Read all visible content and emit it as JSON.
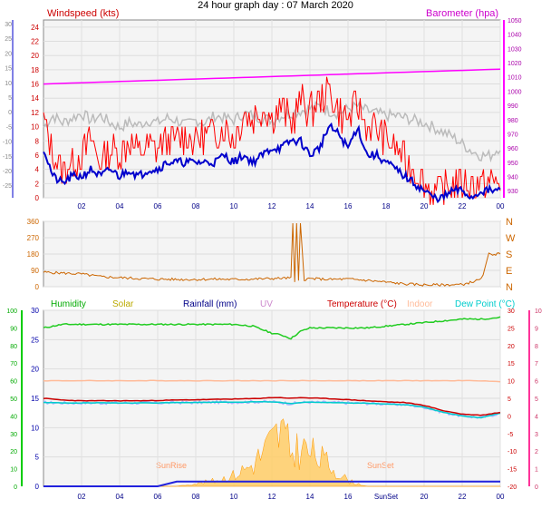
{
  "title": "24 hour graph day : 07 March 2020",
  "colors": {
    "wind_avg": "#0000cc",
    "wind_gust": "#ff0000",
    "baro": "#ff00ff",
    "temp_gray": "#bbbbbb",
    "direction": "#cc6600",
    "humidity": "#00bb00",
    "solar": "#cccc00",
    "rainfall": "#0000aa",
    "uv": "#cc88cc",
    "temperature": "#cc0000",
    "indoor": "#ffbb99",
    "dewpoint": "#00cccc"
  },
  "chart_data": [
    {
      "type": "line",
      "title": "Windspeed (kts)",
      "right_title": "Barometer (hpa)",
      "x_tick_labels": [
        "02",
        "04",
        "06",
        "08",
        "10",
        "12",
        "14",
        "16",
        "18",
        "20",
        "22",
        "00"
      ],
      "y_left_outer_ticks": [
        "30",
        "25",
        "20",
        "15",
        "10",
        "5",
        "0",
        "-5",
        "-10",
        "-15",
        "-20",
        "-25"
      ],
      "y_left_ticks": [
        "24",
        "22",
        "20",
        "18",
        "16",
        "14",
        "12",
        "10",
        "8",
        "6",
        "4",
        "2",
        "0"
      ],
      "y_right_ticks": [
        "1050",
        "1040",
        "1030",
        "1020",
        "1010",
        "1000",
        "990",
        "980",
        "970",
        "960",
        "950",
        "940",
        "930"
      ],
      "ylim": [
        0,
        25
      ],
      "x_hours": [
        0,
        0.5,
        1,
        1.5,
        2,
        2.5,
        3,
        3.5,
        4,
        4.5,
        5,
        5.5,
        6,
        6.5,
        7,
        7.5,
        8,
        8.5,
        9,
        9.5,
        10,
        10.5,
        11,
        11.5,
        12,
        12.5,
        13,
        13.5,
        14,
        14.5,
        15,
        15.5,
        16,
        16.5,
        17,
        17.5,
        18,
        18.5,
        19,
        19.5,
        20,
        20.5,
        21,
        21.5,
        22,
        22.5,
        23,
        23.5,
        24
      ],
      "series": [
        {
          "name": "Windspeed (kts)",
          "values": [
            7,
            3,
            2,
            3,
            3,
            4,
            3,
            4,
            3,
            4,
            3,
            4,
            4,
            5,
            5,
            5,
            5,
            5,
            5,
            6,
            5,
            6,
            5,
            6,
            7,
            7,
            8,
            8,
            6,
            7,
            10,
            9,
            7,
            10,
            6,
            6,
            5,
            4,
            3,
            2,
            1,
            0,
            0,
            1,
            1,
            0,
            1,
            1,
            1
          ]
        },
        {
          "name": "Gust",
          "values": [
            11,
            6,
            4,
            5,
            6,
            8,
            5,
            7,
            6,
            8,
            6,
            7,
            7,
            8,
            8,
            9,
            8,
            9,
            9,
            10,
            8,
            12,
            11,
            13,
            11,
            13,
            10,
            14,
            12,
            14,
            15,
            12,
            11,
            13,
            10,
            10,
            8,
            7,
            5,
            4,
            2,
            1,
            1,
            2,
            2,
            2,
            2,
            2,
            2
          ]
        },
        {
          "name": "Barometer (hpa)",
          "values": [
            1004,
            1004.5,
            1005,
            1005.5,
            1006,
            1006.5,
            1007,
            1007.5,
            1008,
            1008.5,
            1009,
            1009.5,
            1010,
            1010.5,
            1011,
            1011.5,
            1012,
            1012.5,
            1013,
            1013.5,
            1014,
            1014.5,
            1015,
            1015.5,
            1016,
            1016.5,
            1017,
            1017.5,
            1018,
            1018.5,
            1019,
            1019.5,
            1020,
            1020.5,
            1021,
            1021.5,
            1022,
            1022.5,
            1023,
            1023.5,
            1024,
            1024.5,
            1025,
            1025.5,
            1026,
            1026.5,
            1027,
            1027.5,
            1028
          ]
        },
        {
          "name": "Temperature (grey)",
          "values": [
            3,
            3.5,
            3.2,
            3.4,
            3.6,
            3.3,
            3.5,
            3.2,
            3.0,
            3.2,
            3.1,
            3.3,
            3.2,
            3.4,
            3.3,
            3.1,
            3.3,
            3.2,
            3.5,
            3.4,
            3.3,
            3.6,
            3.5,
            3.4,
            3.3,
            3.5,
            3.6,
            3.7,
            3.8,
            3.9,
            3.7,
            3.6,
            3.8,
            3.9,
            3.7,
            3.6,
            3.5,
            3.5,
            3.4,
            3.3,
            3.2,
            3.0,
            2.8,
            2.6,
            2.3,
            2.0,
            1.8,
            1.8,
            2.2
          ]
        }
      ]
    },
    {
      "type": "line",
      "title": "Wind direction",
      "y_left_ticks": [
        "360",
        "270",
        "180",
        "90",
        "0"
      ],
      "y_right_ticks": [
        "N",
        "W",
        "S",
        "E",
        "N"
      ],
      "ylim": [
        0,
        360
      ],
      "x_hours": [
        0,
        1,
        2,
        3,
        4,
        5,
        6,
        7,
        8,
        9,
        10,
        11,
        12,
        13,
        13.1,
        13.2,
        13.3,
        13.4,
        13.5,
        13.7,
        14,
        15,
        16,
        17,
        18,
        19,
        20,
        21,
        22,
        23,
        23.2,
        23.4,
        23.6,
        24
      ],
      "series": [
        {
          "name": "Wind direction",
          "values": [
            80,
            75,
            70,
            55,
            50,
            45,
            42,
            40,
            40,
            42,
            40,
            42,
            45,
            48,
            350,
            20,
            350,
            30,
            350,
            40,
            45,
            40,
            42,
            35,
            25,
            15,
            10,
            10,
            12,
            40,
            100,
            180,
            180,
            180
          ]
        }
      ]
    },
    {
      "type": "line",
      "title": "Humidity / Rainfall / Temperature",
      "legend": [
        "Humidity",
        "Solar",
        "Rainfall (mm)",
        "UV",
        "Temperature (°C)",
        "Indoor",
        "Dew Point (°C)"
      ],
      "annotations": [
        "SunRise",
        "SunSet"
      ],
      "y_left_outer_ticks": [
        "100",
        "90",
        "80",
        "70",
        "60",
        "50",
        "40",
        "30",
        "20",
        "10",
        "0"
      ],
      "y_left_ticks": [
        "30",
        "25",
        "20",
        "15",
        "10",
        "5",
        "0"
      ],
      "y_right_ticks": [
        "30",
        "25",
        "20",
        "15",
        "10",
        "5",
        "0",
        "-5",
        "-10",
        "-15",
        "-20"
      ],
      "y_right_outer_ticks": [
        "10",
        "9",
        "8",
        "7",
        "6",
        "5",
        "4",
        "3",
        "2",
        "1",
        "0"
      ],
      "x_tick_labels": [
        "02",
        "04",
        "06",
        "08",
        "10",
        "12",
        "14",
        "16",
        "SunSet",
        "20",
        "22",
        "00"
      ],
      "xlim": [
        0,
        24
      ],
      "x_hours": [
        0,
        1,
        2,
        3,
        4,
        5,
        6,
        7,
        8,
        9,
        10,
        11,
        12,
        12.5,
        13,
        13.5,
        14,
        15,
        16,
        17,
        18,
        19,
        20,
        21,
        22,
        23,
        24
      ],
      "series": [
        {
          "name": "Humidity",
          "values": [
            90,
            92,
            92,
            92,
            92,
            92,
            92,
            92,
            92,
            92,
            92,
            91,
            87,
            86,
            84,
            88,
            90,
            90,
            90,
            90,
            91,
            92,
            93,
            94,
            95,
            95,
            96
          ]
        },
        {
          "name": "Temperature (°C)",
          "values": [
            5,
            4.5,
            4.3,
            4.3,
            4.3,
            4.3,
            4.4,
            4.5,
            4.6,
            4.7,
            4.8,
            4.9,
            5.2,
            5.2,
            5.0,
            5.2,
            5.1,
            4.9,
            4.6,
            4.3,
            4.0,
            3.8,
            3.0,
            1.5,
            0.5,
            0.2,
            1.0
          ]
        },
        {
          "name": "Dew Point (°C)",
          "values": [
            3.8,
            3.7,
            3.7,
            3.7,
            3.7,
            3.7,
            3.7,
            3.8,
            3.8,
            3.9,
            3.9,
            4.0,
            4.0,
            3.8,
            3.5,
            3.8,
            3.9,
            3.8,
            3.7,
            3.6,
            3.4,
            3.2,
            2.5,
            1.0,
            0,
            -0.5,
            0.8
          ]
        },
        {
          "name": "Indoor",
          "values": [
            10,
            10,
            10,
            10,
            10,
            10,
            10,
            10,
            10,
            10,
            10,
            10,
            10,
            10,
            10,
            10,
            10,
            10,
            10,
            10,
            10,
            10,
            10,
            10,
            10,
            10,
            9.7
          ]
        },
        {
          "name": "Rainfall (mm)",
          "values": [
            0,
            0,
            0,
            0,
            0,
            0,
            0,
            0.8,
            0.8,
            0.8,
            0.8,
            0.8,
            0.8,
            0.8,
            0.8,
            0.8,
            0.8,
            0.8,
            0.8,
            0.8,
            0.8,
            0.8,
            0.8,
            0.8,
            0.8,
            0.8,
            0.8
          ]
        },
        {
          "name": "Solar",
          "values": [
            0,
            0,
            0,
            0,
            0,
            0,
            0,
            0,
            0.5,
            1,
            2,
            4,
            8,
            10,
            6,
            7,
            6,
            4,
            1,
            0,
            0,
            0,
            0,
            0,
            0,
            0,
            0
          ]
        }
      ]
    }
  ]
}
